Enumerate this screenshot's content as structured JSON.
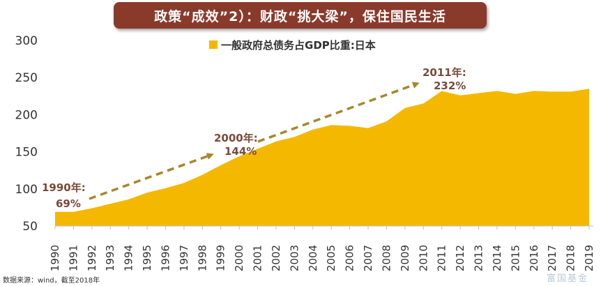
{
  "banner": {
    "title": "政策“成效”2）：财政“挑大梁”，保住国民生活"
  },
  "footnote": "数据来源：wind，截至2018年",
  "watermark": "富国基金",
  "colors": {
    "area": "#f5b800",
    "arrow": "#a8862a",
    "annotation": "#7a4a3a",
    "banner": "#8a3a2b"
  },
  "chart_data": {
    "type": "area",
    "title": "",
    "xlabel": "",
    "ylabel": "",
    "ylim": [
      50,
      300
    ],
    "yticks": [
      50,
      100,
      150,
      200,
      250,
      300
    ],
    "legend": {
      "position": "top-center"
    },
    "categories": [
      "1990",
      "1991",
      "1992",
      "1993",
      "1994",
      "1995",
      "1996",
      "1997",
      "1998",
      "1999",
      "2000",
      "2001",
      "2002",
      "2003",
      "2004",
      "2005",
      "2006",
      "2007",
      "2008",
      "2009",
      "2010",
      "2011",
      "2012",
      "2013",
      "2014",
      "2015",
      "2016",
      "2017",
      "2018",
      "2019"
    ],
    "series": [
      {
        "name": "一般政府总债务占GDP比重:日本",
        "values": [
          69,
          69,
          74,
          80,
          86,
          95,
          101,
          108,
          119,
          132,
          144,
          154,
          164,
          170,
          180,
          186,
          185,
          182,
          191,
          209,
          215,
          232,
          226,
          229,
          232,
          228,
          232,
          231,
          231,
          235
        ]
      }
    ],
    "annotations": [
      {
        "label": "1990年:",
        "value": "69%"
      },
      {
        "label": "2000年:",
        "value": "144%"
      },
      {
        "label": "2011年:",
        "value": "232%"
      }
    ]
  }
}
